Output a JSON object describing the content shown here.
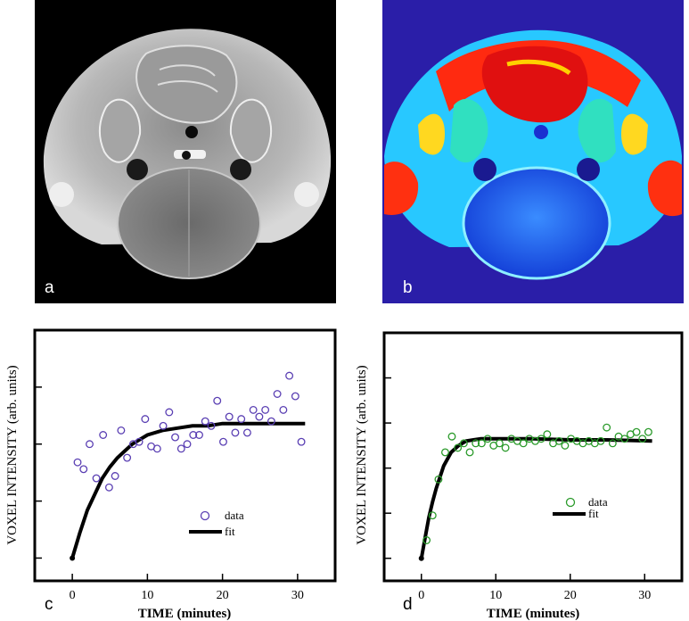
{
  "panels": {
    "a": {
      "letter": "a"
    },
    "b": {
      "letter": "b"
    },
    "c": {
      "letter": "c"
    },
    "d": {
      "letter": "d"
    }
  },
  "colors": {
    "data_c": "#5a3fb3",
    "data_d": "#2a9a2a",
    "fit": "#000000"
  },
  "chart_data": [
    {
      "panel": "c",
      "type": "scatter",
      "xlabel": "TIME (minutes)",
      "ylabel": "VOXEL INTENSITY (arb. units)",
      "xlim": [
        -5,
        35
      ],
      "ylim": [
        0,
        1.1
      ],
      "xticks": [
        0,
        10,
        20,
        30
      ],
      "xtick_labels": [
        "0",
        "10",
        "20",
        "30"
      ],
      "yticks": [
        0.1,
        0.35,
        0.6,
        0.85
      ],
      "legend": {
        "data": "data",
        "fit": "fit",
        "position": "lower-center"
      },
      "series": [
        {
          "name": "data",
          "style": "markers",
          "x": [
            0.7,
            1.5,
            2.3,
            3.2,
            4.1,
            4.9,
            5.7,
            6.5,
            7.3,
            8.1,
            8.9,
            9.7,
            10.5,
            11.3,
            12.1,
            12.9,
            13.7,
            14.5,
            15.3,
            16.1,
            16.9,
            17.7,
            18.5,
            19.3,
            20.1,
            20.9,
            21.7,
            22.5,
            23.3,
            24.1,
            24.9,
            25.7,
            26.5,
            27.3,
            28.1,
            28.9,
            29.7,
            30.5
          ],
          "y": [
            0.52,
            0.49,
            0.6,
            0.45,
            0.64,
            0.41,
            0.46,
            0.66,
            0.54,
            0.6,
            0.61,
            0.71,
            0.59,
            0.58,
            0.68,
            0.74,
            0.63,
            0.58,
            0.6,
            0.64,
            0.64,
            0.7,
            0.68,
            0.79,
            0.61,
            0.72,
            0.65,
            0.71,
            0.65,
            0.75,
            0.72,
            0.75,
            0.7,
            0.82,
            0.75,
            0.9,
            0.81,
            0.61
          ]
        },
        {
          "name": "fit",
          "style": "line",
          "x": [
            0,
            1,
            2,
            3,
            4,
            5,
            6,
            7,
            8,
            9,
            10,
            12,
            14,
            16,
            18,
            20,
            22,
            24,
            26,
            28,
            31
          ],
          "y": [
            0.1,
            0.21,
            0.31,
            0.38,
            0.45,
            0.5,
            0.54,
            0.57,
            0.6,
            0.62,
            0.64,
            0.66,
            0.67,
            0.68,
            0.68,
            0.69,
            0.69,
            0.69,
            0.69,
            0.69,
            0.69
          ]
        }
      ]
    },
    {
      "panel": "d",
      "type": "scatter",
      "xlabel": "TIME (minutes)",
      "ylabel": "VOXEL INTENSITY (arb. units)",
      "xlim": [
        -5,
        35
      ],
      "ylim": [
        0,
        1.1
      ],
      "xticks": [
        0,
        10,
        20,
        30
      ],
      "xtick_labels": [
        "0",
        "10",
        "20",
        "30"
      ],
      "yticks": [
        0.1,
        0.3,
        0.5,
        0.7,
        0.9
      ],
      "legend": {
        "data": "data",
        "fit": "fit",
        "position": "lower-right"
      },
      "series": [
        {
          "name": "data",
          "style": "markers",
          "x": [
            0.7,
            1.5,
            2.3,
            3.2,
            4.1,
            4.9,
            5.7,
            6.5,
            7.3,
            8.1,
            8.9,
            9.7,
            10.5,
            11.3,
            12.1,
            12.9,
            13.7,
            14.5,
            15.3,
            16.1,
            16.9,
            17.7,
            18.5,
            19.3,
            20.1,
            20.9,
            21.7,
            22.5,
            23.3,
            24.1,
            24.9,
            25.7,
            26.5,
            27.3,
            28.1,
            28.9,
            29.7,
            30.5
          ],
          "y": [
            0.18,
            0.29,
            0.45,
            0.57,
            0.64,
            0.59,
            0.61,
            0.57,
            0.61,
            0.61,
            0.63,
            0.6,
            0.61,
            0.59,
            0.63,
            0.62,
            0.61,
            0.63,
            0.62,
            0.63,
            0.65,
            0.61,
            0.62,
            0.6,
            0.63,
            0.62,
            0.61,
            0.62,
            0.61,
            0.62,
            0.68,
            0.61,
            0.64,
            0.63,
            0.65,
            0.66,
            0.63,
            0.66
          ]
        },
        {
          "name": "fit",
          "style": "line",
          "x": [
            0,
            0.5,
            1,
            1.5,
            2,
            2.5,
            3,
            3.5,
            4,
            5,
            6,
            7,
            8,
            10,
            12,
            15,
            20,
            25,
            31
          ],
          "y": [
            0.1,
            0.19,
            0.28,
            0.35,
            0.41,
            0.46,
            0.51,
            0.54,
            0.57,
            0.6,
            0.62,
            0.625,
            0.63,
            0.63,
            0.63,
            0.63,
            0.625,
            0.625,
            0.62
          ]
        }
      ]
    }
  ]
}
